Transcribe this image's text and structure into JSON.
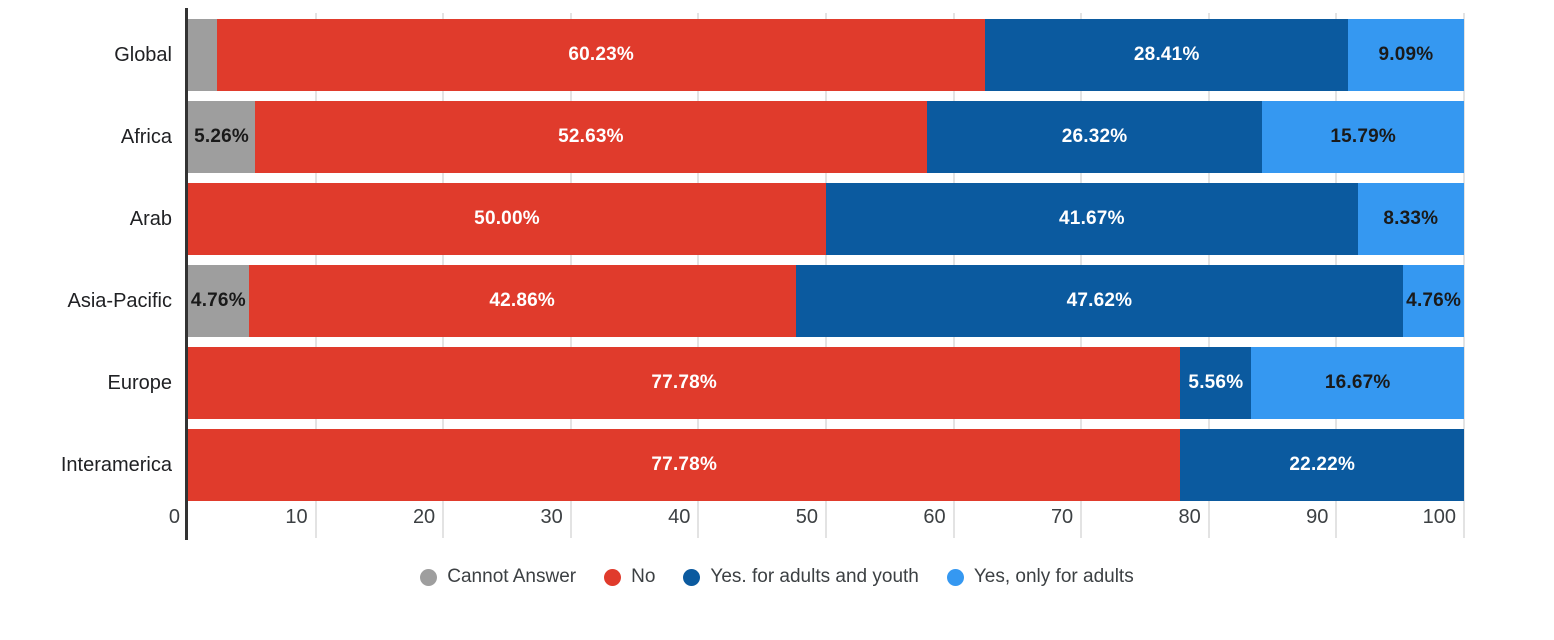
{
  "colors": {
    "gridline": "#e3e3e3",
    "axis_line": "#333333",
    "tick_text": "#3c4043",
    "category_text": "#202124",
    "legend_text": "#3c4043",
    "cannot_answer": "#9e9e9e",
    "no": "#e03b2c",
    "yes_adults_youth": "#0b5a9f",
    "yes_only_adults": "#3598f1"
  },
  "chart_data": {
    "type": "bar",
    "orientation": "horizontal",
    "stacked": true,
    "title": "",
    "xlabel": "",
    "ylabel": "",
    "xlim": [
      0,
      100
    ],
    "grid": true,
    "legend_position": "bottom",
    "categories": [
      "Global",
      "Africa",
      "Arab",
      "Asia-Pacific",
      "Europe",
      "Interamerica"
    ],
    "x_ticks": [
      "0",
      "10",
      "20",
      "30",
      "40",
      "50",
      "60",
      "70",
      "80",
      "90",
      "100"
    ],
    "series": [
      {
        "name": "Cannot Answer",
        "slug": "cannot-answer",
        "color": "#9e9e9e",
        "label_color": "#1a1a1a",
        "values": [
          2.27,
          5.26,
          0,
          4.76,
          0,
          0
        ],
        "labels": [
          "",
          "5.26%",
          "",
          "4.76%",
          "",
          ""
        ]
      },
      {
        "name": "No",
        "slug": "no",
        "color": "#e03b2c",
        "label_color": "#ffffff",
        "values": [
          60.23,
          52.63,
          50.0,
          42.86,
          77.78,
          77.78
        ],
        "labels": [
          "60.23%",
          "52.63%",
          "50.00%",
          "42.86%",
          "77.78%",
          "77.78%"
        ]
      },
      {
        "name": "Yes. for adults and youth",
        "slug": "yes-for-adults-and-youth",
        "color": "#0b5a9f",
        "label_color": "#ffffff",
        "values": [
          28.41,
          26.32,
          41.67,
          47.62,
          5.56,
          22.22
        ],
        "labels": [
          "28.41%",
          "26.32%",
          "41.67%",
          "47.62%",
          "5.56%",
          "22.22%"
        ]
      },
      {
        "name": "Yes, only for adults",
        "slug": "yes-only-for-adults",
        "color": "#3598f1",
        "label_color": "#1a1a1a",
        "values": [
          9.09,
          15.79,
          8.33,
          4.76,
          16.67,
          0
        ],
        "labels": [
          "9.09%",
          "15.79%",
          "8.33%",
          "4.76%",
          "16.67%",
          ""
        ]
      }
    ]
  },
  "layout_note": ""
}
